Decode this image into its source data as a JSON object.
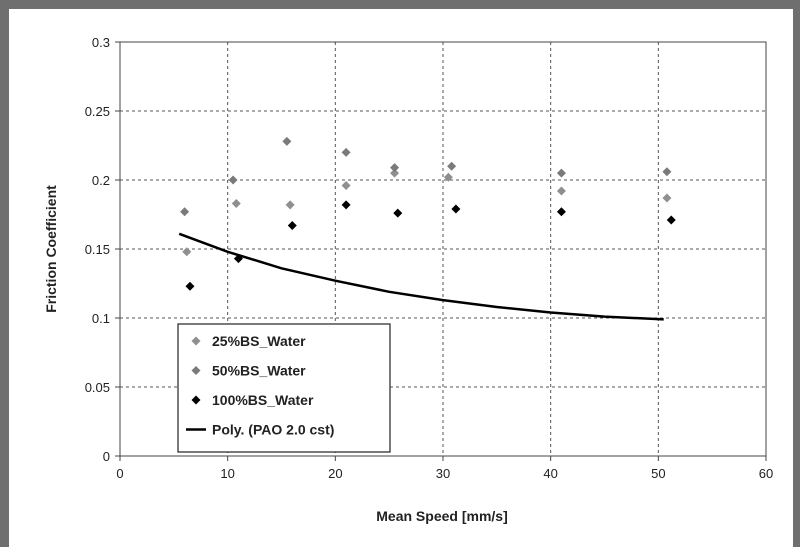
{
  "chart_data": {
    "type": "scatter",
    "xlabel": "Mean Speed [mm/s]",
    "ylabel": "Friction Coefficient",
    "xlim": [
      0,
      60
    ],
    "ylim": [
      0,
      0.3
    ],
    "x_ticks": [
      "0",
      "10",
      "20",
      "30",
      "40",
      "50",
      "60"
    ],
    "y_ticks": [
      "0",
      "0.05",
      "0.1",
      "0.15",
      "0.2",
      "0.25",
      "0.3"
    ],
    "grid": true,
    "legend_position": "bottom-left",
    "series": [
      {
        "name": "25%BS_Water",
        "color": "#8f8f8f",
        "marker": "diamond",
        "points": [
          [
            6.2,
            0.148
          ],
          [
            10.8,
            0.183
          ],
          [
            15.8,
            0.182
          ],
          [
            21.0,
            0.196
          ],
          [
            25.5,
            0.205
          ],
          [
            30.5,
            0.202
          ],
          [
            41.0,
            0.192
          ],
          [
            50.8,
            0.187
          ]
        ]
      },
      {
        "name": "50%BS_Water",
        "color": "#7a7a7a",
        "marker": "diamond",
        "points": [
          [
            6.0,
            0.177
          ],
          [
            10.5,
            0.2
          ],
          [
            15.5,
            0.228
          ],
          [
            21.0,
            0.22
          ],
          [
            25.5,
            0.209
          ],
          [
            30.8,
            0.21
          ],
          [
            41.0,
            0.205
          ],
          [
            50.8,
            0.206
          ]
        ]
      },
      {
        "name": "100%BS_Water",
        "color": "#000000",
        "marker": "diamond",
        "points": [
          [
            6.5,
            0.123
          ],
          [
            11.0,
            0.143
          ],
          [
            16.0,
            0.167
          ],
          [
            21.0,
            0.182
          ],
          [
            25.8,
            0.176
          ],
          [
            31.2,
            0.179
          ],
          [
            41.0,
            0.177
          ],
          [
            51.2,
            0.171
          ]
        ]
      },
      {
        "name": "Poly. (PAO 2.0 cst)",
        "color": "#000000",
        "marker": "line",
        "points": [
          [
            5.5,
            0.161
          ],
          [
            10,
            0.148
          ],
          [
            15,
            0.136
          ],
          [
            20,
            0.127
          ],
          [
            25,
            0.119
          ],
          [
            30,
            0.113
          ],
          [
            35,
            0.108
          ],
          [
            40,
            0.104
          ],
          [
            45,
            0.101
          ],
          [
            50.5,
            0.099
          ]
        ]
      }
    ]
  }
}
